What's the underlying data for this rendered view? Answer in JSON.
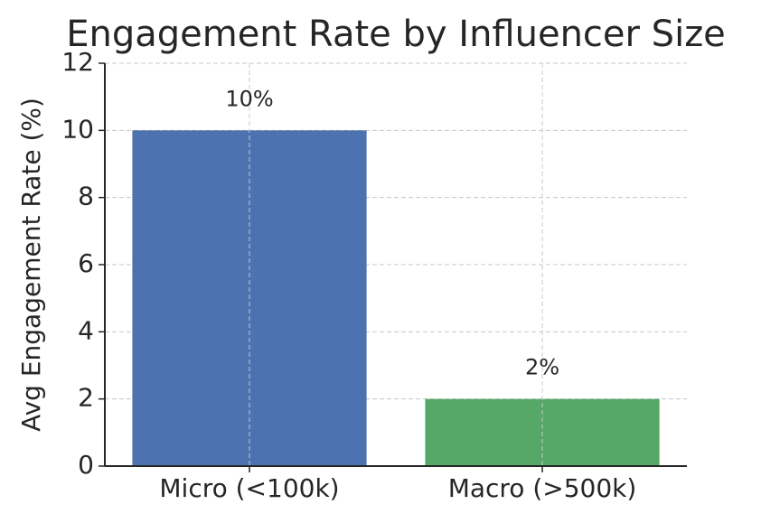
{
  "chart_data": {
    "type": "bar",
    "title": "Engagement Rate by Influencer Size",
    "y_label": "Avg Engagement Rate (%)",
    "categories": [
      "Micro (<100k)",
      "Macro (>500k)"
    ],
    "values": [
      10,
      2
    ],
    "value_labels": [
      "10%",
      "2%"
    ],
    "colors": [
      "#4c72b0",
      "#55a868"
    ],
    "ylim": [
      0,
      12
    ],
    "yticks": [
      0,
      2,
      4,
      6,
      8,
      10,
      12
    ],
    "grid": true
  }
}
